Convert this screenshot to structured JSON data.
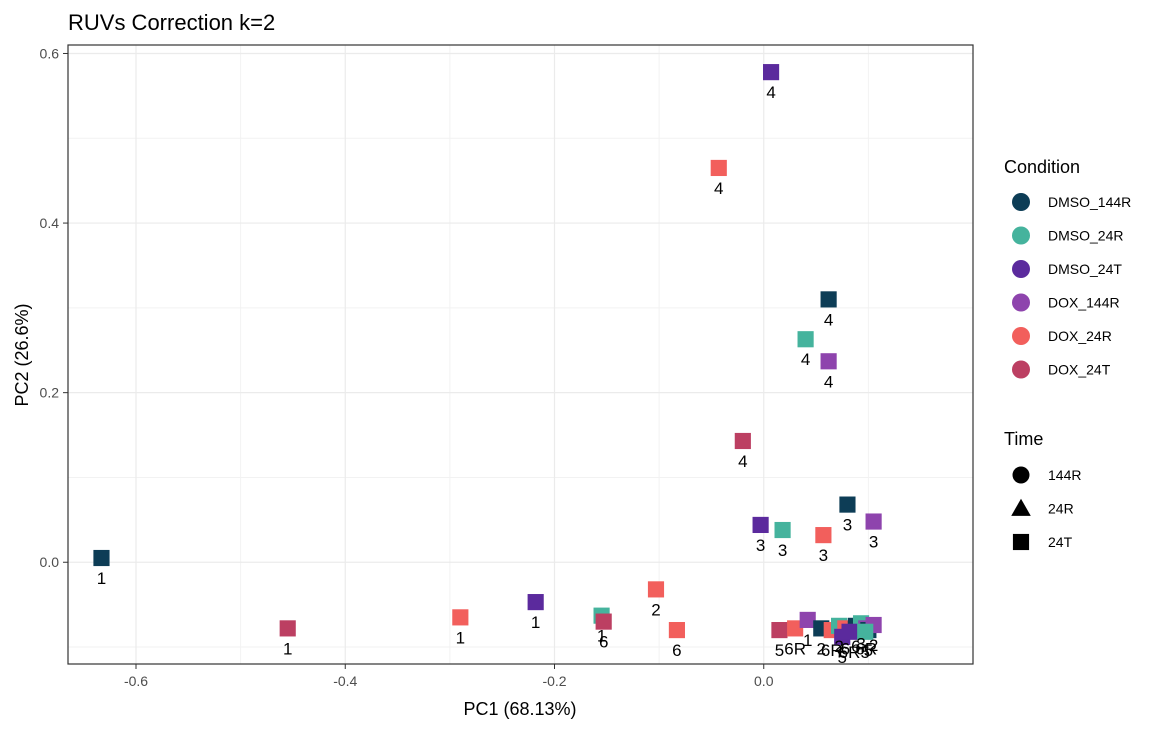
{
  "chart_data": {
    "type": "scatter",
    "title": "RUVs Correction k=2",
    "xlabel": "PC1 (68.13%)",
    "ylabel": "PC2 (26.6%)",
    "xlim": [
      -0.665,
      0.2
    ],
    "ylim": [
      -0.12,
      0.61
    ],
    "x_ticks": [
      -0.6,
      -0.4,
      -0.2,
      0.0
    ],
    "x_tick_labels": [
      "-0.6",
      "-0.4",
      "-0.2",
      "0.0"
    ],
    "y_ticks": [
      0.0,
      0.2,
      0.4,
      0.6
    ],
    "y_tick_labels": [
      "0.0",
      "0.2",
      "0.4",
      "0.6"
    ],
    "grid": true,
    "legend_position": "right",
    "color_legend": {
      "title": "Condition",
      "entries": [
        {
          "label": "DMSO_144R",
          "color": "#0d3d56"
        },
        {
          "label": "DMSO_24R",
          "color": "#45b39d"
        },
        {
          "label": "DMSO_24T",
          "color": "#5b2a9d"
        },
        {
          "label": "DOX_144R",
          "color": "#8e44ad"
        },
        {
          "label": "DOX_24R",
          "color": "#f25f5c"
        },
        {
          "label": "DOX_24T",
          "color": "#bc3f62"
        }
      ]
    },
    "shape_legend": {
      "title": "Time",
      "entries": [
        {
          "label": "144R",
          "shape": "circle"
        },
        {
          "label": "24R",
          "shape": "triangle"
        },
        {
          "label": "24T",
          "shape": "square"
        }
      ]
    },
    "points": [
      {
        "condition": "DMSO_144R",
        "time": "144R",
        "x": -0.633,
        "y": 0.005,
        "label": "1"
      },
      {
        "condition": "DOX_24T",
        "time": "24T",
        "x": -0.455,
        "y": -0.078,
        "label": "1"
      },
      {
        "condition": "DOX_24R",
        "time": "24R",
        "x": -0.29,
        "y": -0.065,
        "label": "1"
      },
      {
        "condition": "DMSO_24T",
        "time": "24T",
        "x": -0.218,
        "y": -0.047,
        "label": "1"
      },
      {
        "condition": "DMSO_24R",
        "time": "24R",
        "x": -0.155,
        "y": -0.063,
        "label": "1"
      },
      {
        "condition": "DOX_24T",
        "time": "24T",
        "x": -0.153,
        "y": -0.07,
        "label": "6"
      },
      {
        "condition": "DOX_24R",
        "time": "24R",
        "x": -0.103,
        "y": -0.032,
        "label": "2"
      },
      {
        "condition": "DOX_24R",
        "time": "24R",
        "x": -0.083,
        "y": -0.08,
        "label": "6"
      },
      {
        "condition": "DMSO_24T",
        "time": "24T",
        "x": 0.007,
        "y": 0.578,
        "label": "4"
      },
      {
        "condition": "DOX_24R",
        "time": "24R",
        "x": -0.043,
        "y": 0.465,
        "label": "4"
      },
      {
        "condition": "DMSO_144R",
        "time": "144R",
        "x": 0.062,
        "y": 0.31,
        "label": "4"
      },
      {
        "condition": "DMSO_24R",
        "time": "24R",
        "x": 0.04,
        "y": 0.263,
        "label": "4"
      },
      {
        "condition": "DOX_144R",
        "time": "144R",
        "x": 0.062,
        "y": 0.237,
        "label": "4"
      },
      {
        "condition": "DOX_24T",
        "time": "24T",
        "x": -0.02,
        "y": 0.143,
        "label": "4"
      },
      {
        "condition": "DMSO_24T",
        "time": "24T",
        "x": -0.003,
        "y": 0.044,
        "label": "3"
      },
      {
        "condition": "DMSO_24R",
        "time": "24R",
        "x": 0.018,
        "y": 0.038,
        "label": "3"
      },
      {
        "condition": "DOX_24R",
        "time": "24R",
        "x": 0.057,
        "y": 0.032,
        "label": "3"
      },
      {
        "condition": "DMSO_144R",
        "time": "144R",
        "x": 0.08,
        "y": 0.068,
        "label": "3"
      },
      {
        "condition": "DOX_144R",
        "time": "144R",
        "x": 0.105,
        "y": 0.048,
        "label": "3"
      },
      {
        "condition": "DOX_24T",
        "time": "24T",
        "x": 0.015,
        "y": -0.08,
        "label": "5"
      },
      {
        "condition": "DOX_24R",
        "time": "24R",
        "x": 0.03,
        "y": -0.078,
        "label": "6R"
      },
      {
        "condition": "DOX_144R",
        "time": "144R",
        "x": 0.042,
        "y": -0.068,
        "label": "1"
      },
      {
        "condition": "DMSO_144R",
        "time": "144R",
        "x": 0.055,
        "y": -0.078,
        "label": "2"
      },
      {
        "condition": "DOX_24R",
        "time": "24R",
        "x": 0.065,
        "y": -0.08,
        "label": "6R"
      },
      {
        "condition": "DMSO_24R",
        "time": "24R",
        "x": 0.072,
        "y": -0.075,
        "label": "2"
      },
      {
        "condition": "DOX_24R",
        "time": "24R",
        "x": 0.078,
        "y": -0.078,
        "label": "6"
      },
      {
        "condition": "DMSO_24T",
        "time": "24T",
        "x": 0.075,
        "y": -0.088,
        "label": "5"
      },
      {
        "condition": "DMSO_144R",
        "time": "144R",
        "x": 0.088,
        "y": -0.075,
        "label": "6"
      },
      {
        "condition": "DMSO_24R",
        "time": "24R",
        "x": 0.093,
        "y": -0.072,
        "label": "3"
      },
      {
        "condition": "DOX_144R",
        "time": "144R",
        "x": 0.098,
        "y": -0.078,
        "label": "6R"
      },
      {
        "condition": "DMSO_144R",
        "time": "144R",
        "x": 0.1,
        "y": -0.08,
        "label": "5"
      },
      {
        "condition": "DOX_144R",
        "time": "144R",
        "x": 0.105,
        "y": -0.074,
        "label": "2"
      },
      {
        "condition": "DMSO_24T",
        "time": "24T",
        "x": 0.082,
        "y": -0.082,
        "label": "6R"
      },
      {
        "condition": "DMSO_24R",
        "time": "24R",
        "x": 0.097,
        "y": -0.082,
        "label": "5"
      }
    ]
  }
}
